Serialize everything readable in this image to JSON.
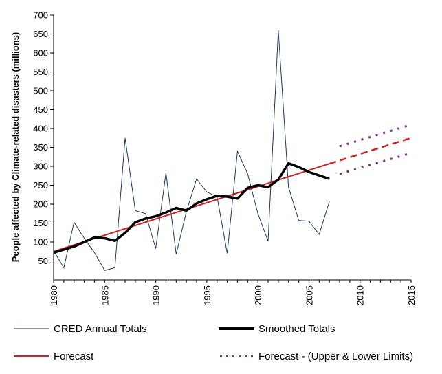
{
  "chart_data": {
    "type": "line",
    "title": "",
    "xlabel": "",
    "ylabel": "People affected by Climate-related disasters (millions)",
    "xlim": [
      1980,
      2015
    ],
    "ylim": [
      0,
      700
    ],
    "x_ticks": [
      1980,
      1985,
      1990,
      1995,
      2000,
      2005,
      2010,
      2015
    ],
    "y_ticks": [
      50,
      100,
      150,
      200,
      250,
      300,
      350,
      400,
      450,
      500,
      550,
      600,
      650,
      700
    ],
    "grid": false,
    "legend_placement": "bottom",
    "colors": {
      "annual": "#1f3a5f",
      "smoothed": "#000000",
      "forecast": "#d42020",
      "limits": "#7a2d8c"
    },
    "series": [
      {
        "name": "CRED Annual Totals",
        "style": "thin-solid",
        "x": [
          1980,
          1981,
          1982,
          1983,
          1984,
          1985,
          1986,
          1987,
          1988,
          1989,
          1990,
          1991,
          1992,
          1993,
          1994,
          1995,
          1996,
          1997,
          1998,
          1999,
          2000,
          2001,
          2002,
          2003,
          2004,
          2005,
          2006,
          2007
        ],
        "values": [
          77,
          32,
          152,
          110,
          72,
          25,
          32,
          375,
          183,
          175,
          83,
          283,
          68,
          180,
          267,
          232,
          220,
          70,
          340,
          280,
          175,
          102,
          660,
          245,
          157,
          155,
          120,
          207
        ]
      },
      {
        "name": "Smoothed Totals",
        "style": "thick-solid",
        "x": [
          1980,
          1981,
          1982,
          1983,
          1984,
          1985,
          1986,
          1987,
          1988,
          1989,
          1990,
          1991,
          1992,
          1993,
          1994,
          1995,
          1996,
          1997,
          1998,
          1999,
          2000,
          2001,
          2002,
          2003,
          2004,
          2005,
          2006,
          2007
        ],
        "values": [
          72,
          80,
          88,
          100,
          112,
          110,
          103,
          124,
          152,
          162,
          168,
          178,
          190,
          183,
          202,
          213,
          222,
          220,
          215,
          243,
          250,
          245,
          265,
          308,
          298,
          285,
          276,
          267
        ]
      },
      {
        "name": "Forecast",
        "style": "solid-then-dashed",
        "x": [
          1980,
          2007,
          2015
        ],
        "values": [
          75,
          307,
          375
        ],
        "dashed_from": 2007
      },
      {
        "name": "Forecast - (Upper & Lower Limits)",
        "style": "dotted",
        "upper": {
          "x": [
            2008,
            2015
          ],
          "values": [
            353,
            410
          ]
        },
        "lower": {
          "x": [
            2008,
            2015
          ],
          "values": [
            280,
            335
          ]
        }
      }
    ]
  },
  "legend": {
    "annual_label": "CRED Annual Totals",
    "smoothed_label": "Smoothed Totals",
    "forecast_label": "Forecast",
    "limits_label": "Forecast - (Upper & Lower Limits)"
  }
}
